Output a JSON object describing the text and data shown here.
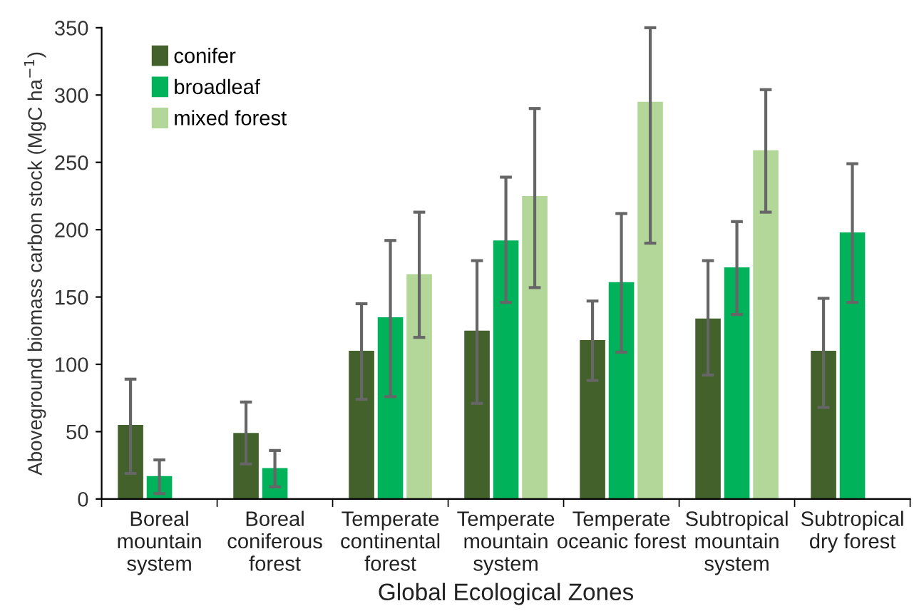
{
  "chart_data": {
    "type": "bar",
    "xlabel": "Global Ecological Zones",
    "ylabel": "Aboveground biomass carbon stock (MgC ha$^{−1}$)",
    "categories": [
      "Boreal\nmountain\nsystem",
      "Boreal\nconiferous\nforest",
      "Temperate\ncontinental\nforest",
      "Temperate\nmountain\nsystem",
      "Temperate\noceanic forest",
      "Subtropical\nmountain\nsystem",
      "Subtropical\ndry forest"
    ],
    "series": [
      {
        "name": "conifer",
        "color": "#43612b",
        "values": [
          55,
          49,
          110,
          125,
          118,
          134,
          110
        ],
        "errors": [
          [
            19,
            89
          ],
          [
            26,
            72
          ],
          [
            74,
            145
          ],
          [
            71,
            177
          ],
          [
            88,
            147
          ],
          [
            92,
            177
          ],
          [
            68,
            149
          ]
        ]
      },
      {
        "name": "broadleaf",
        "color": "#00b259",
        "values": [
          17,
          23,
          135,
          192,
          161,
          172,
          198
        ],
        "errors": [
          [
            4,
            29
          ],
          [
            9,
            36
          ],
          [
            76,
            192
          ],
          [
            146,
            239
          ],
          [
            109,
            212
          ],
          [
            137,
            206
          ],
          [
            146,
            249
          ]
        ]
      },
      {
        "name": "mixed forest",
        "color": "#b3d798",
        "values": [
          null,
          null,
          167,
          225,
          295,
          259,
          null
        ],
        "errors": [
          null,
          null,
          [
            120,
            213
          ],
          [
            157,
            290
          ],
          [
            190,
            350
          ],
          [
            213,
            304
          ],
          null
        ]
      }
    ],
    "ylim": [
      0,
      350
    ],
    "yticks": [
      0,
      50,
      100,
      150,
      200,
      250,
      300,
      350
    ],
    "grid": false,
    "legend": "top left"
  }
}
